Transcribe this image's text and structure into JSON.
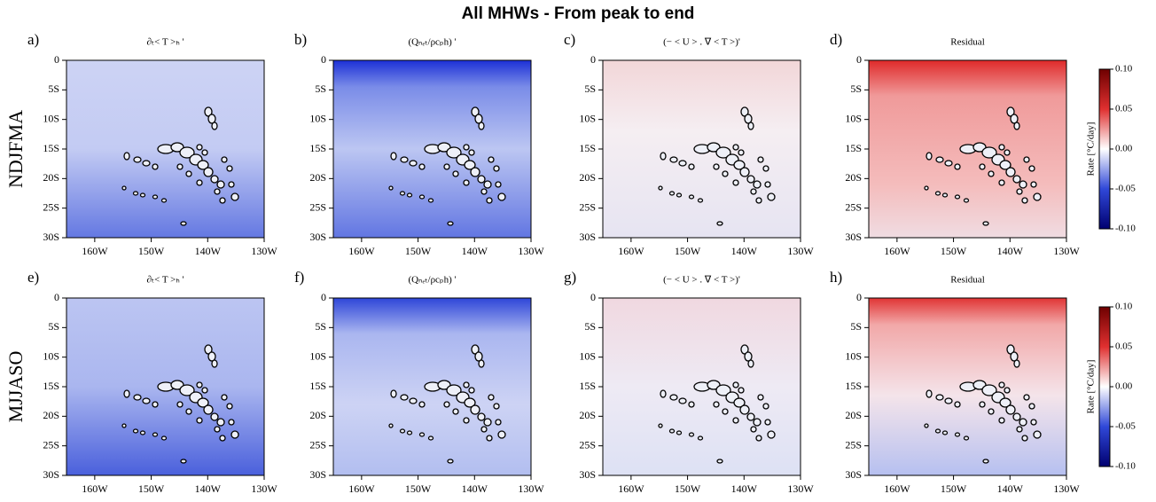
{
  "title": "All MHWs -  From peak to end",
  "row_labels": [
    "NDJFMA",
    "MJJASO"
  ],
  "panels": [
    {
      "label": "a)",
      "subtitle": "∂ₜ< T >ₕ '"
    },
    {
      "label": "b)",
      "subtitle": "(Qₙₑₜ/ρcₚh) '"
    },
    {
      "label": "c)",
      "subtitle": "(− < U > . ∇ < T >)'"
    },
    {
      "label": "d)",
      "subtitle": "Residual"
    },
    {
      "label": "e)",
      "subtitle": "∂ₜ< T >ₕ '"
    },
    {
      "label": "f)",
      "subtitle": "(Qₙₑₜ/ρcₚh) '"
    },
    {
      "label": "g)",
      "subtitle": "(− < U > . ∇ < T >)'"
    },
    {
      "label": "h)",
      "subtitle": "Residual"
    }
  ],
  "axes": {
    "xlim": [
      -165,
      -130
    ],
    "xticks": [
      {
        "value": -160,
        "label": "160W"
      },
      {
        "value": -150,
        "label": "150W"
      },
      {
        "value": -140,
        "label": "140W"
      },
      {
        "value": -130,
        "label": "130W"
      }
    ],
    "ylim": [
      -30,
      0
    ],
    "yticks": [
      0,
      {
        "value": -5,
        "label": "5S"
      },
      {
        "value": -10,
        "label": "10S"
      },
      {
        "value": -15,
        "label": "15S"
      },
      {
        "value": -20,
        "label": "20S"
      },
      {
        "value": -25,
        "label": "25S"
      },
      {
        "value": -30,
        "label": "30S"
      }
    ]
  },
  "colorbar": {
    "label": "Rate [°C/day]",
    "lim": [
      -0.1,
      0.1
    ],
    "ticks": [
      {
        "value": 0.1,
        "label": "0.10"
      },
      {
        "value": 0.05,
        "label": "0.05"
      },
      {
        "value": 0,
        "label": "0.00"
      },
      {
        "value": -0.05,
        "label": "-0.05"
      },
      {
        "value": -0.1,
        "label": "-0.10"
      }
    ]
  }
}
